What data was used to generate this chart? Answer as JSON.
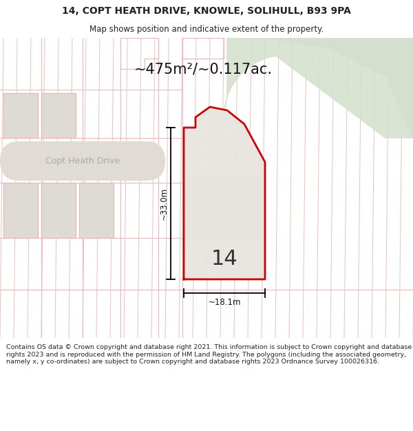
{
  "title_line1": "14, COPT HEATH DRIVE, KNOWLE, SOLIHULL, B93 9PA",
  "title_line2": "Map shows position and indicative extent of the property.",
  "area_text": "~475m²/~0.117ac.",
  "street_label": "Copt Heath Drive",
  "number_label": "14",
  "dim_vertical": "~33.0m",
  "dim_horizontal": "~18.1m",
  "footer_text": "Contains OS data © Crown copyright and database right 2021. This information is subject to Crown copyright and database rights 2023 and is reproduced with the permission of HM Land Registry. The polygons (including the associated geometry, namely x, y co-ordinates) are subject to Crown copyright and database rights 2023 Ordnance Survey 100026316.",
  "bg_map": "#f7f3ef",
  "plot_fill": "#e8e4df",
  "plot_outline": "#cc0000",
  "hatch_color": "#e8b8b8",
  "hatch_color2": "#e8b8b8",
  "title_bg": "#ffffff",
  "footer_bg": "#ffffff",
  "road_fill": "#e0dbd5",
  "green_fill": "#d4e0cc",
  "left_block_fill": "#dedad4",
  "street_text_color": "#aaaaaa"
}
